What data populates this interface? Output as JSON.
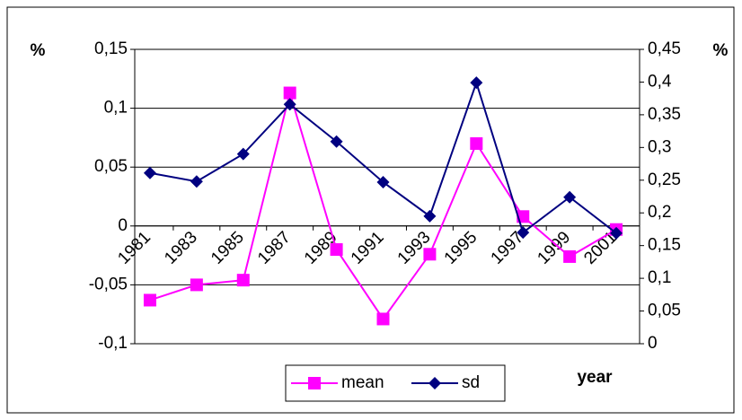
{
  "chart_data": {
    "type": "line",
    "categories": [
      "1981",
      "1983",
      "1985",
      "1987",
      "1989",
      "1991",
      "1993",
      "1995",
      "1997",
      "1999",
      "2001"
    ],
    "series": [
      {
        "name": "mean",
        "color": "#ff00ff",
        "marker": "square",
        "values": [
          -0.063,
          -0.05,
          -0.046,
          0.113,
          -0.02,
          -0.079,
          -0.024,
          0.07,
          0.008,
          -0.026,
          -0.003
        ]
      },
      {
        "name": "sd",
        "color": "#000080",
        "marker": "diamond",
        "axis": "y2",
        "values": [
          0.261,
          0.248,
          0.29,
          0.366,
          0.309,
          0.247,
          0.195,
          0.399,
          0.17,
          0.224,
          0.169
        ]
      }
    ],
    "ylabel": "%",
    "y2label": "%",
    "xlabel": "year",
    "ylim": [
      -0.1,
      0.15
    ],
    "yticks": [
      {
        "value": -0.1,
        "label": "-0,1"
      },
      {
        "value": -0.05,
        "label": "-0,05"
      },
      0,
      {
        "value": 0.05,
        "label": "0,05"
      },
      {
        "value": 0.1,
        "label": "0,1"
      },
      {
        "value": 0.15,
        "label": "0,15"
      }
    ],
    "y2lim": [
      0,
      0.45
    ],
    "y2ticks": [
      0,
      {
        "value": 0.05,
        "label": "0,05"
      },
      {
        "value": 0.1,
        "label": "0,1"
      },
      {
        "value": 0.15,
        "label": "0,15"
      },
      {
        "value": 0.2,
        "label": "0,2"
      },
      {
        "value": 0.25,
        "label": "0,25"
      },
      {
        "value": 0.3,
        "label": "0,3"
      },
      {
        "value": 0.35,
        "label": "0,35"
      },
      {
        "value": 0.4,
        "label": "0,4"
      },
      {
        "value": 0.45,
        "label": "0,45"
      }
    ],
    "grid": true,
    "legend": "bottom"
  }
}
